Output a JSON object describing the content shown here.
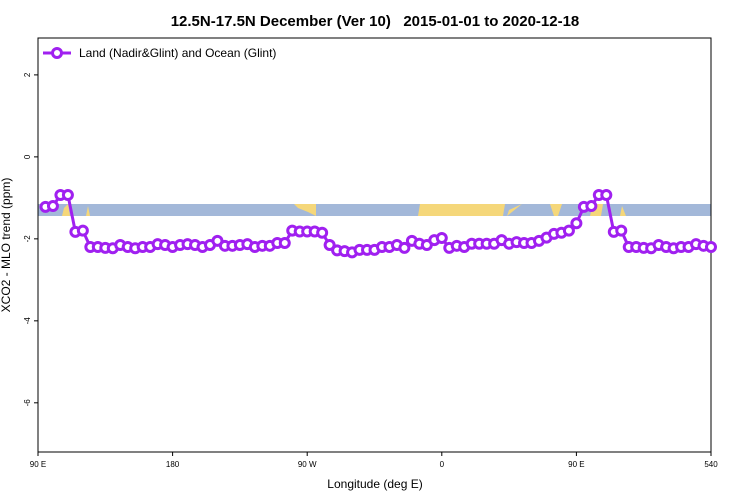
{
  "chart_data": {
    "type": "line",
    "title": "12.5N-17.5N December (Ver 10)   2015-01-01 to 2020-12-18",
    "x_label": "Longitude (deg E)",
    "y_label": "XCO2 - MLO trend (ppm)",
    "xlim": [
      90,
      540
    ],
    "ylim": [
      -7.2,
      2.9
    ],
    "xticks": [
      {
        "value": 90,
        "label": "90 E"
      },
      180,
      {
        "value": 270,
        "label": "90 W"
      },
      {
        "value": 360,
        "label": "0"
      },
      {
        "value": 450,
        "label": "90 E"
      },
      540
    ],
    "yticks": [
      2,
      0,
      -2,
      -4,
      -6
    ],
    "legend": "top-left",
    "series": [
      {
        "name": "Land (Nadir&Glint) and Ocean (Glint)",
        "color": "#a020f0",
        "x": [
          95,
          100,
          105,
          110,
          115,
          120,
          125,
          130,
          135,
          140,
          145,
          150,
          155,
          160,
          165,
          170,
          175,
          180,
          185,
          190,
          195,
          200,
          205,
          210,
          215,
          220,
          225,
          230,
          235,
          240,
          245,
          250,
          255,
          260,
          265,
          270,
          275,
          280,
          285,
          290,
          295,
          300,
          305,
          310,
          315,
          320,
          325,
          330,
          335,
          340,
          345,
          350,
          355,
          360,
          365,
          370,
          375,
          380,
          385,
          390,
          395,
          400,
          405,
          410,
          415,
          420,
          425,
          430,
          435,
          440,
          445,
          450,
          455,
          460,
          465,
          470,
          475,
          480,
          485,
          490,
          495,
          500,
          505,
          510,
          515,
          520,
          525,
          530,
          535,
          540
        ],
        "values": [
          -1.22,
          -1.2,
          -0.93,
          -0.93,
          -1.83,
          -1.8,
          -2.2,
          -2.2,
          -2.22,
          -2.23,
          -2.15,
          -2.2,
          -2.23,
          -2.2,
          -2.2,
          -2.13,
          -2.15,
          -2.2,
          -2.15,
          -2.13,
          -2.15,
          -2.2,
          -2.15,
          -2.05,
          -2.17,
          -2.17,
          -2.15,
          -2.13,
          -2.2,
          -2.17,
          -2.17,
          -2.1,
          -2.1,
          -1.8,
          -1.82,
          -1.82,
          -1.82,
          -1.85,
          -2.15,
          -2.28,
          -2.3,
          -2.33,
          -2.27,
          -2.27,
          -2.27,
          -2.2,
          -2.2,
          -2.15,
          -2.22,
          -2.05,
          -2.12,
          -2.15,
          -2.03,
          -1.98,
          -2.22,
          -2.17,
          -2.2,
          -2.12,
          -2.12,
          -2.12,
          -2.12,
          -2.03,
          -2.12,
          -2.08,
          -2.1,
          -2.1,
          -2.05,
          -1.97,
          -1.88,
          -1.85,
          -1.8,
          -1.62,
          -1.22,
          -1.2,
          -0.93,
          -0.93,
          -1.83,
          -1.8,
          -2.2,
          -2.2,
          -2.22,
          -2.23,
          -2.15,
          -2.2,
          -2.23,
          -2.2,
          -2.2,
          -2.13,
          -2.17,
          -2.2
        ]
      }
    ]
  }
}
